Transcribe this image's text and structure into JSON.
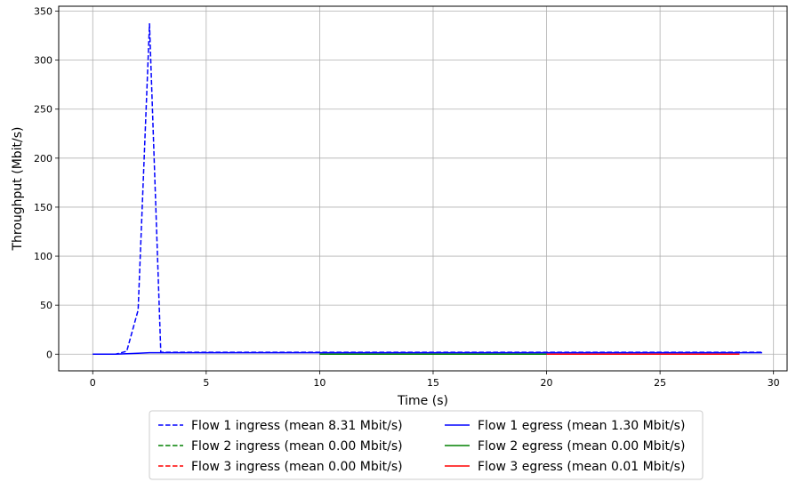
{
  "chart_data": {
    "type": "line",
    "xlabel": "Time (s)",
    "ylabel": "Throughput (Mbit/s)",
    "xlim": [
      -1.5,
      30.6
    ],
    "ylim": [
      -17,
      355
    ],
    "xticks": [
      0,
      5,
      10,
      15,
      20,
      25,
      30
    ],
    "yticks": [
      0,
      50,
      100,
      150,
      200,
      250,
      300,
      350
    ],
    "grid": true,
    "legend_position": "bottom-center",
    "series": [
      {
        "name": "Flow 1 ingress (mean 8.31 Mbit/s)",
        "color": "#0000ff",
        "dash": "dashed",
        "x": [
          0,
          0.5,
          1.0,
          1.5,
          2.0,
          2.5,
          3.0,
          3.5,
          5,
          10,
          15,
          20,
          25,
          29.5
        ],
        "y": [
          0,
          0,
          0,
          3,
          45,
          337,
          2,
          2,
          2,
          2,
          2,
          2,
          2,
          2
        ]
      },
      {
        "name": "Flow 1 egress (mean 1.30 Mbit/s)",
        "color": "#0000ff",
        "dash": "solid",
        "x": [
          0,
          1.0,
          2.0,
          2.5,
          3.0,
          5,
          10,
          15,
          20,
          25,
          29.5
        ],
        "y": [
          0,
          0,
          1,
          1.5,
          1.5,
          1.5,
          1.5,
          1.5,
          1.5,
          1.5,
          1.5
        ]
      },
      {
        "name": "Flow 2 ingress (mean 0.00 Mbit/s)",
        "color": "#008000",
        "dash": "dashed",
        "x": [
          10,
          15,
          20
        ],
        "y": [
          0,
          0,
          0
        ]
      },
      {
        "name": "Flow 2 egress (mean 0.00 Mbit/s)",
        "color": "#008000",
        "dash": "solid",
        "x": [
          10,
          15,
          20
        ],
        "y": [
          0,
          0,
          0
        ]
      },
      {
        "name": "Flow 3 ingress (mean 0.00 Mbit/s)",
        "color": "#ff0000",
        "dash": "dashed",
        "x": [
          20,
          24,
          28.5
        ],
        "y": [
          0,
          0,
          0
        ]
      },
      {
        "name": "Flow 3 egress (mean 0.01 Mbit/s)",
        "color": "#ff0000",
        "dash": "solid",
        "x": [
          20,
          24,
          28.5
        ],
        "y": [
          0,
          0,
          0
        ]
      }
    ]
  }
}
